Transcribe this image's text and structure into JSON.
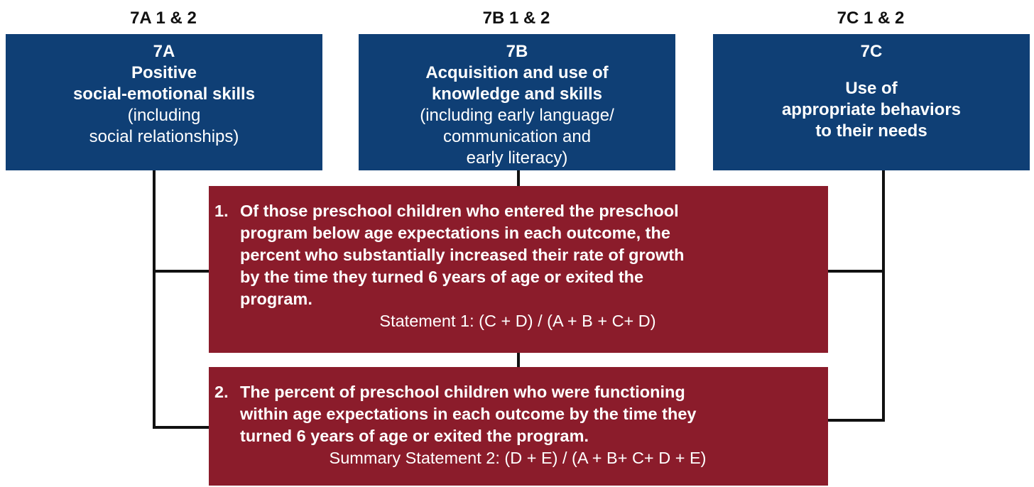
{
  "columns": [
    {
      "label": "7A 1 & 2",
      "box": {
        "id": "7A",
        "title": [
          "Positive",
          "social-emotional skills"
        ],
        "description": [
          "(including",
          "social relationships)"
        ]
      }
    },
    {
      "label": "7B 1 & 2",
      "box": {
        "id": "7B",
        "title": [
          "Acquisition and use of",
          "knowledge and skills"
        ],
        "description": [
          "(including early language/",
          "communication and",
          "early literacy)"
        ]
      }
    },
    {
      "label": "7C 1 & 2",
      "box": {
        "id": "7C",
        "title": [
          "Use of",
          "appropriate behaviors",
          "to their needs"
        ]
      }
    }
  ],
  "statements": [
    {
      "number": "1.",
      "text": [
        "Of those preschool children who entered the preschool",
        "program below age expectations in each outcome, the",
        "percent who substantially increased their rate of growth",
        "by the time they turned 6 years of age or exited the",
        "program."
      ],
      "formula": "Statement 1: (C + D) / (A + B + C+ D)"
    },
    {
      "number": "2.",
      "text": [
        "The percent of preschool children who were functioning",
        "within age expectations in each outcome by the time they",
        "turned 6 years of age or exited the program."
      ],
      "formula": "Summary Statement 2: (D + E) / (A + B+ C+ D + E)"
    }
  ]
}
